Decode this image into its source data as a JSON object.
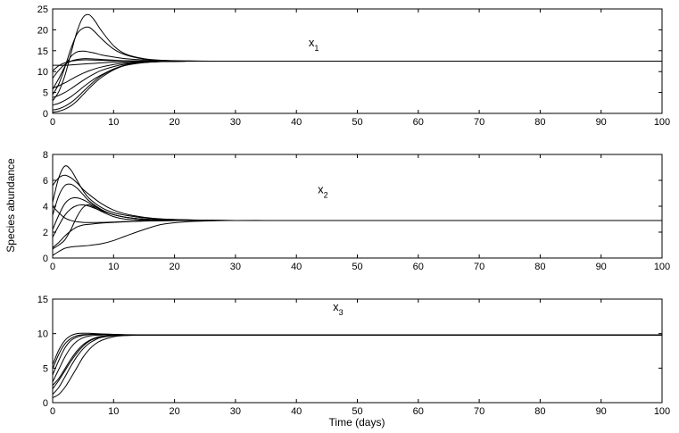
{
  "figure": {
    "xlabel": "Time (days)",
    "ylabel": "Species abundance"
  },
  "chart_data": [
    {
      "type": "line",
      "title": "",
      "annotation": {
        "text": "x",
        "sub": "1",
        "x": 42,
        "y": 16
      },
      "xlim": [
        0,
        100
      ],
      "ylim": [
        0,
        25
      ],
      "xticks": [
        0,
        10,
        20,
        30,
        40,
        50,
        60,
        70,
        80,
        90,
        100
      ],
      "yticks": [
        0,
        5,
        10,
        15,
        20,
        25
      ],
      "grid": false,
      "series": [
        {
          "x": [
            0,
            1,
            2,
            3,
            4,
            5,
            6,
            7,
            8,
            10,
            12,
            15,
            18,
            22,
            26,
            30,
            40,
            100
          ],
          "y": [
            3,
            5.2,
            9,
            14.3,
            19.6,
            23,
            23.6,
            22,
            19.8,
            16.2,
            14.2,
            13.1,
            12.7,
            12.55,
            12.5,
            12.5,
            12.5,
            12.5
          ]
        },
        {
          "x": [
            0,
            1,
            2,
            3,
            4,
            5,
            6,
            7,
            8,
            10,
            12,
            15,
            18,
            22,
            26,
            30,
            40,
            100
          ],
          "y": [
            4.5,
            7,
            11,
            15.5,
            19,
            20.4,
            20.6,
            19.4,
            17.9,
            15.4,
            14,
            13,
            12.65,
            12.52,
            12.5,
            12.5,
            12.5,
            12.5
          ]
        },
        {
          "x": [
            0,
            1,
            2,
            3,
            4,
            5,
            6,
            7,
            8,
            10,
            12,
            15,
            18,
            22,
            26,
            30,
            40,
            100
          ],
          "y": [
            5.8,
            8.3,
            11.2,
            13.6,
            14.7,
            14.9,
            14.7,
            14.4,
            14,
            13.5,
            13.1,
            12.8,
            12.6,
            12.52,
            12.5,
            12.5,
            12.5,
            12.5
          ]
        },
        {
          "x": [
            0,
            1,
            2,
            3,
            4,
            5,
            6,
            7,
            8,
            10,
            12,
            15,
            18,
            22,
            26,
            30,
            40,
            100
          ],
          "y": [
            8.4,
            10.3,
            11.7,
            12.5,
            12.9,
            13.1,
            13.1,
            13,
            12.9,
            12.75,
            12.6,
            12.55,
            12.52,
            12.5,
            12.5,
            12.5,
            12.5,
            12.5
          ]
        },
        {
          "x": [
            0,
            1,
            2,
            3,
            4,
            5,
            6,
            7,
            8,
            10,
            12,
            15,
            18,
            22,
            26,
            30,
            40,
            100
          ],
          "y": [
            10.2,
            11.4,
            12.1,
            12.5,
            12.7,
            12.8,
            12.8,
            12.75,
            12.7,
            12.62,
            12.56,
            12.52,
            12.5,
            12.5,
            12.5,
            12.5,
            12.5,
            12.5
          ]
        },
        {
          "x": [
            0,
            1,
            2,
            3,
            4,
            5,
            6,
            7,
            8,
            10,
            12,
            15,
            18,
            22,
            26,
            30,
            40,
            100
          ],
          "y": [
            11.5,
            11.5,
            11.5,
            11.6,
            11.7,
            11.8,
            11.9,
            12,
            12.1,
            12.25,
            12.35,
            12.45,
            12.48,
            12.5,
            12.5,
            12.5,
            12.5,
            12.5
          ]
        },
        {
          "x": [
            0,
            1,
            2,
            3,
            4,
            5,
            6,
            7,
            8,
            10,
            12,
            15,
            18,
            22,
            26,
            30,
            40,
            100
          ],
          "y": [
            6,
            6.6,
            7.3,
            8.1,
            8.9,
            9.6,
            10.2,
            10.7,
            11.1,
            11.7,
            12.05,
            12.35,
            12.45,
            12.5,
            12.5,
            12.5,
            12.5,
            12.5
          ]
        },
        {
          "x": [
            0,
            1,
            2,
            3,
            4,
            5,
            6,
            7,
            8,
            10,
            12,
            15,
            18,
            22,
            26,
            30,
            40,
            100
          ],
          "y": [
            3.8,
            4.3,
            5,
            5.9,
            6.9,
            7.9,
            8.8,
            9.6,
            10.3,
            11.2,
            11.8,
            12.25,
            12.42,
            12.49,
            12.5,
            12.5,
            12.5,
            12.5
          ]
        },
        {
          "x": [
            0,
            1,
            2,
            3,
            4,
            5,
            6,
            7,
            8,
            10,
            12,
            15,
            18,
            22,
            26,
            30,
            40,
            100
          ],
          "y": [
            2,
            2.4,
            3.1,
            4,
            5.1,
            6.3,
            7.4,
            8.4,
            9.2,
            10.6,
            11.5,
            12.15,
            12.4,
            12.48,
            12.5,
            12.5,
            12.5,
            12.5
          ]
        },
        {
          "x": [
            0,
            1,
            2,
            3,
            4,
            5,
            6,
            7,
            8,
            10,
            12,
            15,
            18,
            22,
            26,
            30,
            40,
            100
          ],
          "y": [
            0.8,
            1.1,
            1.7,
            2.6,
            3.8,
            5.2,
            6.6,
            7.9,
            9,
            10.6,
            11.6,
            12.2,
            12.42,
            12.49,
            12.5,
            12.5,
            12.5,
            12.5
          ]
        },
        {
          "x": [
            0,
            1,
            2,
            3,
            4,
            5,
            6,
            7,
            8,
            10,
            12,
            15,
            18,
            22,
            26,
            30,
            40,
            100
          ],
          "y": [
            0.3,
            0.5,
            1,
            1.8,
            3,
            4.5,
            6,
            7.4,
            8.6,
            10.4,
            11.5,
            12.2,
            12.42,
            12.49,
            12.5,
            12.5,
            12.5,
            12.5
          ]
        }
      ]
    },
    {
      "type": "line",
      "title": "",
      "annotation": {
        "text": "x",
        "sub": "2",
        "x": 43.5,
        "y": 5
      },
      "xlim": [
        0,
        100
      ],
      "ylim": [
        0,
        8
      ],
      "xticks": [
        0,
        10,
        20,
        30,
        40,
        50,
        60,
        70,
        80,
        90,
        100
      ],
      "yticks": [
        0,
        2,
        4,
        6,
        8
      ],
      "grid": false,
      "series": [
        {
          "x": [
            0,
            1,
            2,
            3,
            4,
            5,
            6,
            8,
            10,
            12,
            15,
            18,
            22,
            26,
            30,
            35,
            40,
            100
          ],
          "y": [
            4.3,
            6.2,
            7.1,
            6.8,
            6,
            5.2,
            4.6,
            3.9,
            3.5,
            3.3,
            3.1,
            3,
            2.95,
            2.92,
            2.9,
            2.9,
            2.9,
            2.9
          ]
        },
        {
          "x": [
            0,
            1,
            2,
            3,
            4,
            5,
            6,
            8,
            10,
            12,
            15,
            18,
            22,
            26,
            30,
            35,
            40,
            100
          ],
          "y": [
            5.6,
            6.2,
            6.4,
            6.2,
            5.8,
            5.3,
            4.9,
            4.2,
            3.7,
            3.4,
            3.15,
            3.02,
            2.95,
            2.92,
            2.9,
            2.9,
            2.9,
            2.9
          ]
        },
        {
          "x": [
            0,
            1,
            2,
            3,
            4,
            5,
            6,
            8,
            10,
            12,
            15,
            18,
            22,
            26,
            30,
            35,
            40,
            100
          ],
          "y": [
            3.3,
            4.8,
            5.6,
            5.7,
            5.4,
            4.9,
            4.4,
            3.75,
            3.35,
            3.15,
            3,
            2.95,
            2.92,
            2.9,
            2.9,
            2.9,
            2.9,
            2.9
          ]
        },
        {
          "x": [
            0,
            1,
            2,
            3,
            4,
            5,
            6,
            8,
            10,
            12,
            15,
            18,
            22,
            26,
            30,
            35,
            40,
            100
          ],
          "y": [
            2.2,
            3.3,
            4.2,
            4.6,
            4.65,
            4.5,
            4.25,
            3.7,
            3.35,
            3.15,
            3,
            2.95,
            2.92,
            2.9,
            2.9,
            2.9,
            2.9,
            2.9
          ]
        },
        {
          "x": [
            0,
            1,
            2,
            3,
            4,
            5,
            6,
            8,
            10,
            12,
            15,
            18,
            22,
            26,
            30,
            35,
            40,
            100
          ],
          "y": [
            1.6,
            2.5,
            3.3,
            3.8,
            4.05,
            4.1,
            4,
            3.65,
            3.35,
            3.15,
            3,
            2.95,
            2.92,
            2.9,
            2.9,
            2.9,
            2.9,
            2.9
          ]
        },
        {
          "x": [
            0,
            1,
            2,
            3,
            4,
            5,
            6,
            8,
            10,
            12,
            15,
            18,
            22,
            26,
            30,
            35,
            40,
            100
          ],
          "y": [
            4,
            3.5,
            3.1,
            2.9,
            2.8,
            2.75,
            2.74,
            2.75,
            2.78,
            2.82,
            2.86,
            2.88,
            2.9,
            2.9,
            2.9,
            2.9,
            2.9,
            2.9
          ]
        },
        {
          "x": [
            0,
            1,
            2,
            3,
            4,
            5,
            6,
            8,
            10,
            12,
            15,
            18,
            22,
            26,
            30,
            35,
            40,
            100
          ],
          "y": [
            0.7,
            1,
            1.4,
            2.2,
            3.2,
            3.9,
            4.1,
            3.6,
            3.2,
            3,
            2.92,
            2.9,
            2.9,
            2.9,
            2.9,
            2.9,
            2.9,
            2.9
          ]
        },
        {
          "x": [
            0,
            1,
            2,
            3,
            4,
            5,
            6,
            8,
            10,
            12,
            15,
            18,
            22,
            26,
            30,
            35,
            40,
            100
          ],
          "y": [
            0.8,
            1.2,
            1.7,
            2.1,
            2.4,
            2.55,
            2.6,
            2.7,
            2.75,
            2.8,
            2.85,
            2.88,
            2.9,
            2.9,
            2.9,
            2.9,
            2.9,
            2.9
          ]
        },
        {
          "x": [
            0,
            1,
            2,
            3,
            4,
            5,
            6,
            8,
            10,
            12,
            15,
            18,
            22,
            26,
            30,
            35,
            40,
            100
          ],
          "y": [
            0.2,
            0.5,
            0.75,
            0.85,
            0.9,
            0.93,
            0.97,
            1.1,
            1.35,
            1.7,
            2.2,
            2.6,
            2.8,
            2.87,
            2.9,
            2.9,
            2.9,
            2.9
          ]
        }
      ]
    },
    {
      "type": "line",
      "title": "",
      "annotation": {
        "text": "x",
        "sub": "3",
        "x": 46,
        "y": 13.3
      },
      "xlim": [
        0,
        100
      ],
      "ylim": [
        0,
        15
      ],
      "xticks": [
        0,
        10,
        20,
        30,
        40,
        50,
        60,
        70,
        80,
        90,
        100
      ],
      "yticks": [
        0,
        5,
        10,
        15
      ],
      "grid": false,
      "series": [
        {
          "x": [
            0,
            1,
            2,
            3,
            4,
            5,
            6,
            7,
            8,
            10,
            12,
            15,
            18,
            22,
            30,
            100
          ],
          "y": [
            5.5,
            7.6,
            9,
            9.7,
            10,
            10.05,
            10.05,
            10,
            9.95,
            9.9,
            9.85,
            9.82,
            9.8,
            9.8,
            9.8,
            9.8
          ]
        },
        {
          "x": [
            0,
            1,
            2,
            3,
            4,
            5,
            6,
            7,
            8,
            10,
            12,
            15,
            18,
            22,
            30,
            100
          ],
          "y": [
            4.9,
            7,
            8.5,
            9.3,
            9.7,
            9.85,
            9.9,
            9.9,
            9.88,
            9.85,
            9.83,
            9.81,
            9.8,
            9.8,
            9.8,
            9.8
          ]
        },
        {
          "x": [
            0,
            1,
            2,
            3,
            4,
            5,
            6,
            7,
            8,
            10,
            12,
            15,
            18,
            22,
            30,
            100
          ],
          "y": [
            4,
            6.1,
            7.9,
            9,
            9.5,
            9.75,
            9.85,
            9.87,
            9.87,
            9.85,
            9.83,
            9.81,
            9.8,
            9.8,
            9.8,
            9.8
          ]
        },
        {
          "x": [
            0,
            1,
            2,
            3,
            4,
            5,
            6,
            7,
            8,
            10,
            12,
            15,
            18,
            22,
            30,
            100
          ],
          "y": [
            3,
            4.8,
            6.6,
            8,
            8.9,
            9.4,
            9.65,
            9.75,
            9.8,
            9.82,
            9.82,
            9.81,
            9.8,
            9.8,
            9.8,
            9.8
          ]
        },
        {
          "x": [
            0,
            1,
            2,
            3,
            4,
            5,
            6,
            7,
            8,
            10,
            12,
            15,
            18,
            22,
            30,
            100
          ],
          "y": [
            2.5,
            3.5,
            4.9,
            6.3,
            7.5,
            8.4,
            9,
            9.4,
            9.6,
            9.75,
            9.79,
            9.8,
            9.8,
            9.8,
            9.8,
            9.8
          ]
        },
        {
          "x": [
            0,
            1,
            2,
            3,
            4,
            5,
            6,
            7,
            8,
            10,
            12,
            15,
            18,
            22,
            30,
            100
          ],
          "y": [
            2,
            3.2,
            4.6,
            6,
            7.2,
            8.2,
            8.9,
            9.3,
            9.55,
            9.72,
            9.78,
            9.8,
            9.8,
            9.8,
            9.8,
            9.8
          ]
        },
        {
          "x": [
            0,
            1,
            2,
            3,
            4,
            5,
            6,
            7,
            8,
            10,
            12,
            15,
            18,
            22,
            30,
            100
          ],
          "y": [
            1.2,
            2.2,
            3.7,
            5.3,
            6.7,
            7.8,
            8.6,
            9.1,
            9.45,
            9.7,
            9.78,
            9.8,
            9.8,
            9.8,
            9.8,
            9.8
          ]
        },
        {
          "x": [
            0,
            1,
            2,
            3,
            4,
            5,
            6,
            7,
            8,
            10,
            12,
            15,
            18,
            22,
            30,
            100
          ],
          "y": [
            0.7,
            1.2,
            2.2,
            3.6,
            5.1,
            6.6,
            7.7,
            8.5,
            9,
            9.55,
            9.72,
            9.78,
            9.8,
            9.8,
            9.8,
            9.8
          ]
        }
      ]
    }
  ]
}
